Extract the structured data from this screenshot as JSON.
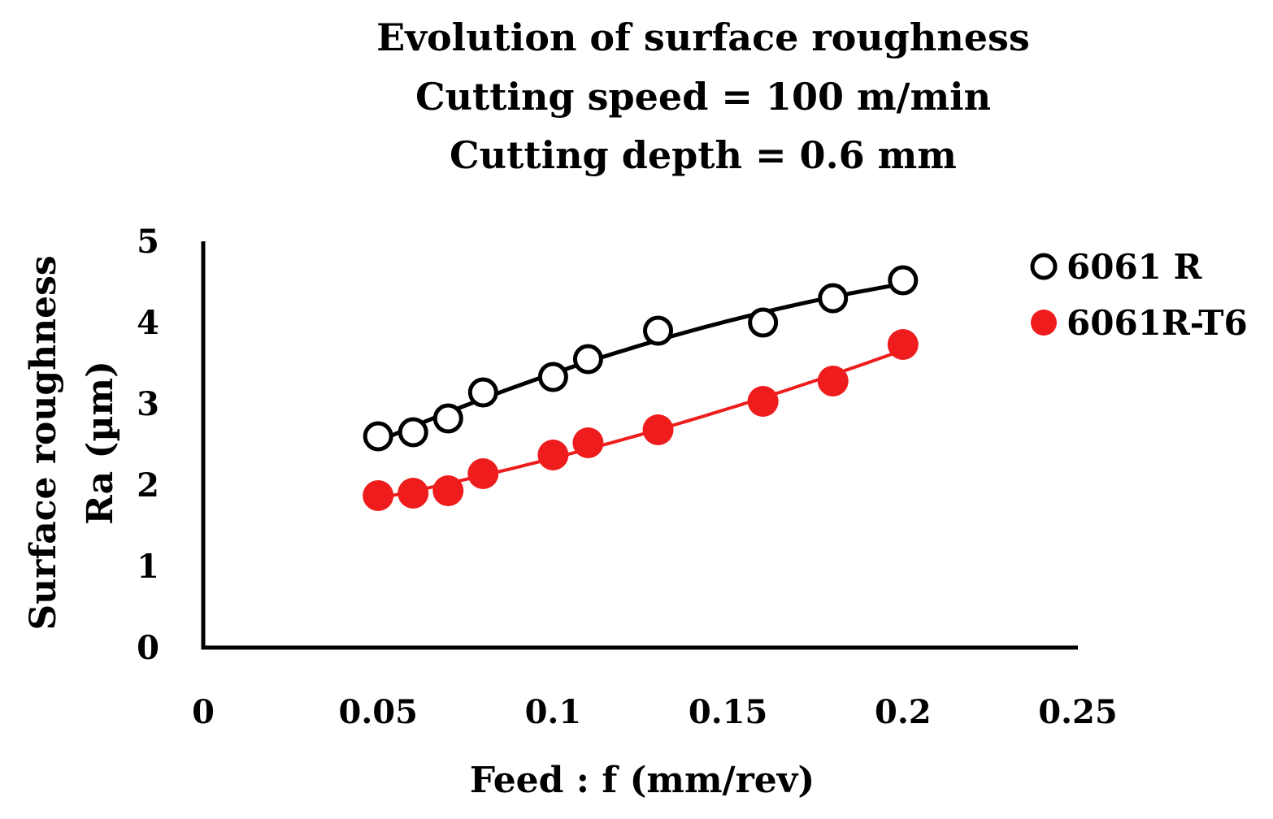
{
  "chart_data": {
    "type": "scatter",
    "title_lines": [
      "Evolution of surface roughness",
      "Cutting speed = 100 m/min",
      "Cutting depth = 0.6 mm"
    ],
    "xlabel": "Feed : f (mm/rev)",
    "ylabel_lines": [
      "Surface roughness",
      "Ra (µm)"
    ],
    "xlim": [
      0,
      0.25
    ],
    "ylim": [
      0,
      5
    ],
    "x_ticks": [
      "0",
      "0.05",
      "0.1",
      "0.15",
      "0.2",
      "0.25"
    ],
    "y_ticks": [
      "0",
      "1",
      "2",
      "3",
      "4",
      "5"
    ],
    "grid": false,
    "legend_position": "right",
    "x": [
      0.05,
      0.06,
      0.07,
      0.08,
      0.1,
      0.11,
      0.13,
      0.16,
      0.18,
      0.2
    ],
    "series": [
      {
        "name": "6061 R",
        "marker": "open-circle",
        "color": "#000000",
        "values": [
          2.6,
          2.65,
          2.82,
          3.14,
          3.33,
          3.55,
          3.9,
          4.0,
          4.3,
          4.52
        ],
        "trendline": true
      },
      {
        "name": "6061R-T6",
        "marker": "filled-circle",
        "color": "#ee1c1c",
        "values": [
          1.87,
          1.9,
          1.93,
          2.14,
          2.37,
          2.52,
          2.68,
          3.03,
          3.28,
          3.73
        ],
        "trendline": true
      }
    ]
  }
}
